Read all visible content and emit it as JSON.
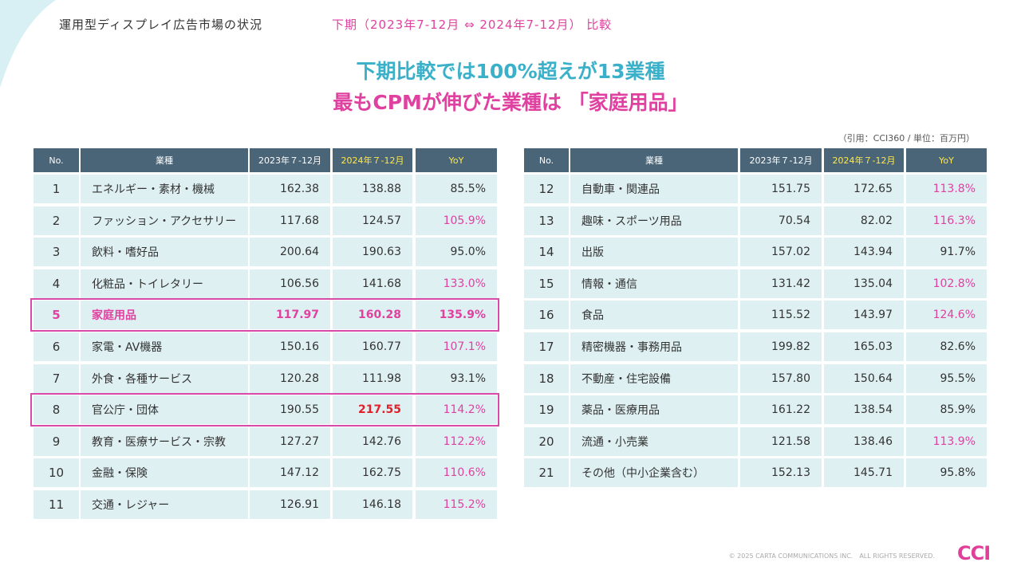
{
  "header": {
    "title": "運用型ディスプレイ広告市場の状況",
    "subtitle": "下期（2023年7-12月 ⇔ 2024年7-12月） 比較"
  },
  "headline": [
    "下期比較では100%超えが13業種",
    "最もCPMが伸びた業種は 「家庭用品」"
  ],
  "note": "（引用：CCI360 / 単位：百万円）",
  "tables": [
    {
      "columns": [
        "No.",
        "業種",
        "2023年７-12月",
        "2024年７-12月",
        "YoY"
      ],
      "rows": [
        [
          "1",
          "エネルギー・素材・機械",
          "162.38",
          "138.88",
          "85.5%"
        ],
        [
          "2",
          "ファッション・アクセサリー",
          "117.68",
          "124.57",
          "105.9%"
        ],
        [
          "3",
          "飲料・嗜好品",
          "200.64",
          "190.63",
          "95.0%"
        ],
        [
          "4",
          "化粧品・トイレタリー",
          "106.56",
          "141.68",
          "133.0%"
        ],
        [
          "5",
          "家庭用品",
          "117.97",
          "160.28",
          "135.9%"
        ],
        [
          "6",
          "家電・AV機器",
          "150.16",
          "160.77",
          "107.1%"
        ],
        [
          "7",
          "外食・各種サービス",
          "120.28",
          "111.98",
          "93.1%"
        ],
        [
          "8",
          "官公庁・団体",
          "190.55",
          "217.55",
          "114.2%"
        ],
        [
          "9",
          "教育・医療サービス・宗教",
          "127.27",
          "142.76",
          "112.2%"
        ],
        [
          "10",
          "金融・保険",
          "147.12",
          "162.75",
          "110.6%"
        ],
        [
          "11",
          "交通・レジャー",
          "126.91",
          "146.18",
          "115.2%"
        ]
      ]
    },
    {
      "columns": [
        "No.",
        "業種",
        "2023年７-12月",
        "2024年７-12月",
        "YoY"
      ],
      "rows": [
        [
          "12",
          "自動車・関連品",
          "151.75",
          "172.65",
          "113.8%"
        ],
        [
          "13",
          "趣味・スポーツ用品",
          "70.54",
          "82.02",
          "116.3%"
        ],
        [
          "14",
          "出版",
          "157.02",
          "143.94",
          "91.7%"
        ],
        [
          "15",
          "情報・通信",
          "131.42",
          "135.04",
          "102.8%"
        ],
        [
          "16",
          "食品",
          "115.52",
          "143.97",
          "124.6%"
        ],
        [
          "17",
          "精密機器・事務用品",
          "199.82",
          "165.03",
          "82.6%"
        ],
        [
          "18",
          "不動産・住宅設備",
          "157.80",
          "150.64",
          "95.5%"
        ],
        [
          "19",
          "薬品・医療用品",
          "161.22",
          "138.54",
          "85.9%"
        ],
        [
          "20",
          "流通・小売業",
          "121.58",
          "138.46",
          "113.9%"
        ],
        [
          "21",
          "その他（中小企業含む）",
          "152.13",
          "145.71",
          "95.8%"
        ]
      ]
    }
  ],
  "footer": {
    "copyright": "© 2025 CARTA COMMUNICATIONS INC.　ALL RIGHTS RESERVED.",
    "logo": "CCI"
  }
}
